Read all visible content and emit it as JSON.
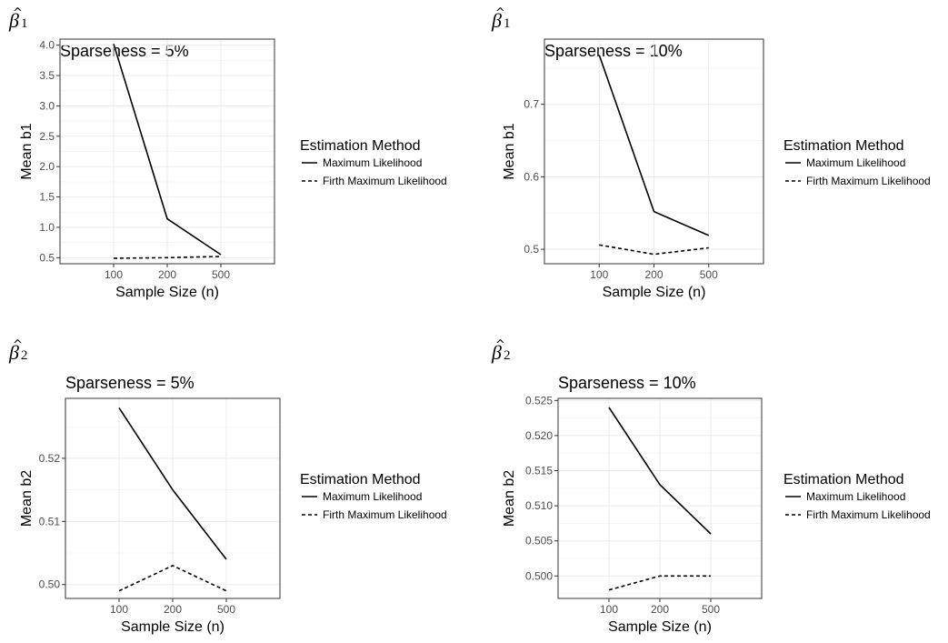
{
  "chart_data": [
    {
      "type": "line",
      "parameter_symbol": "β",
      "parameter_subscript": "1",
      "title": "Sparseness = 5%",
      "xlabel": "Sample Size (n)",
      "ylabel": "Mean b1",
      "categories": [
        "100",
        "200",
        "500"
      ],
      "ylim": [
        0.4,
        4.1
      ],
      "yticks": [
        "0.5",
        "1.0",
        "1.5",
        "2.0",
        "2.5",
        "3.0",
        "3.5",
        "4.0"
      ],
      "ytick_values": [
        0.5,
        1.0,
        1.5,
        2.0,
        2.5,
        3.0,
        3.5,
        4.0
      ],
      "legend_title": "Estimation Method",
      "series": [
        {
          "name": "Maximum Likelihood",
          "line_style": "solid",
          "values": [
            4.02,
            1.14,
            0.55
          ]
        },
        {
          "name": "Firth Maximum Likelihood",
          "line_style": "dashed",
          "values": [
            0.49,
            0.5,
            0.52
          ]
        }
      ]
    },
    {
      "type": "line",
      "parameter_symbol": "β",
      "parameter_subscript": "1",
      "title": "Sparseness = 10%",
      "xlabel": "Sample Size (n)",
      "ylabel": "Mean b1",
      "categories": [
        "100",
        "200",
        "500"
      ],
      "ylim": [
        0.48,
        0.79
      ],
      "yticks": [
        "0.5",
        "0.6",
        "0.7"
      ],
      "ytick_values": [
        0.5,
        0.6,
        0.7
      ],
      "legend_title": "Estimation Method",
      "series": [
        {
          "name": "Maximum Likelihood",
          "line_style": "solid",
          "values": [
            0.768,
            0.552,
            0.519
          ]
        },
        {
          "name": "Firth Maximum Likelihood",
          "line_style": "dashed",
          "values": [
            0.506,
            0.493,
            0.502
          ]
        }
      ]
    },
    {
      "type": "line",
      "parameter_symbol": "β",
      "parameter_subscript": "2",
      "title": "Sparseness = 5%",
      "xlabel": "Sample Size (n)",
      "ylabel": "Mean b2",
      "categories": [
        "100",
        "200",
        "500"
      ],
      "ylim": [
        0.4978,
        0.5295
      ],
      "yticks": [
        "0.50",
        "0.51",
        "0.52"
      ],
      "ytick_values": [
        0.5,
        0.51,
        0.52
      ],
      "legend_title": "Estimation Method",
      "series": [
        {
          "name": "Maximum Likelihood",
          "line_style": "solid",
          "values": [
            0.528,
            0.515,
            0.504
          ]
        },
        {
          "name": "Firth Maximum Likelihood",
          "line_style": "dashed",
          "values": [
            0.499,
            0.503,
            0.499
          ]
        }
      ]
    },
    {
      "type": "line",
      "parameter_symbol": "β",
      "parameter_subscript": "2",
      "title": "Sparseness = 10%",
      "xlabel": "Sample Size (n)",
      "ylabel": "Mean b2",
      "categories": [
        "100",
        "200",
        "500"
      ],
      "ylim": [
        0.4968,
        0.5253
      ],
      "yticks": [
        "0.500",
        "0.505",
        "0.510",
        "0.515",
        "0.520",
        "0.525"
      ],
      "ytick_values": [
        0.5,
        0.505,
        0.51,
        0.515,
        0.52,
        0.525
      ],
      "legend_title": "Estimation Method",
      "series": [
        {
          "name": "Maximum Likelihood",
          "line_style": "solid",
          "values": [
            0.524,
            0.513,
            0.506
          ]
        },
        {
          "name": "Firth Maximum Likelihood",
          "line_style": "dashed",
          "values": [
            0.498,
            0.5,
            0.5
          ]
        }
      ]
    }
  ]
}
